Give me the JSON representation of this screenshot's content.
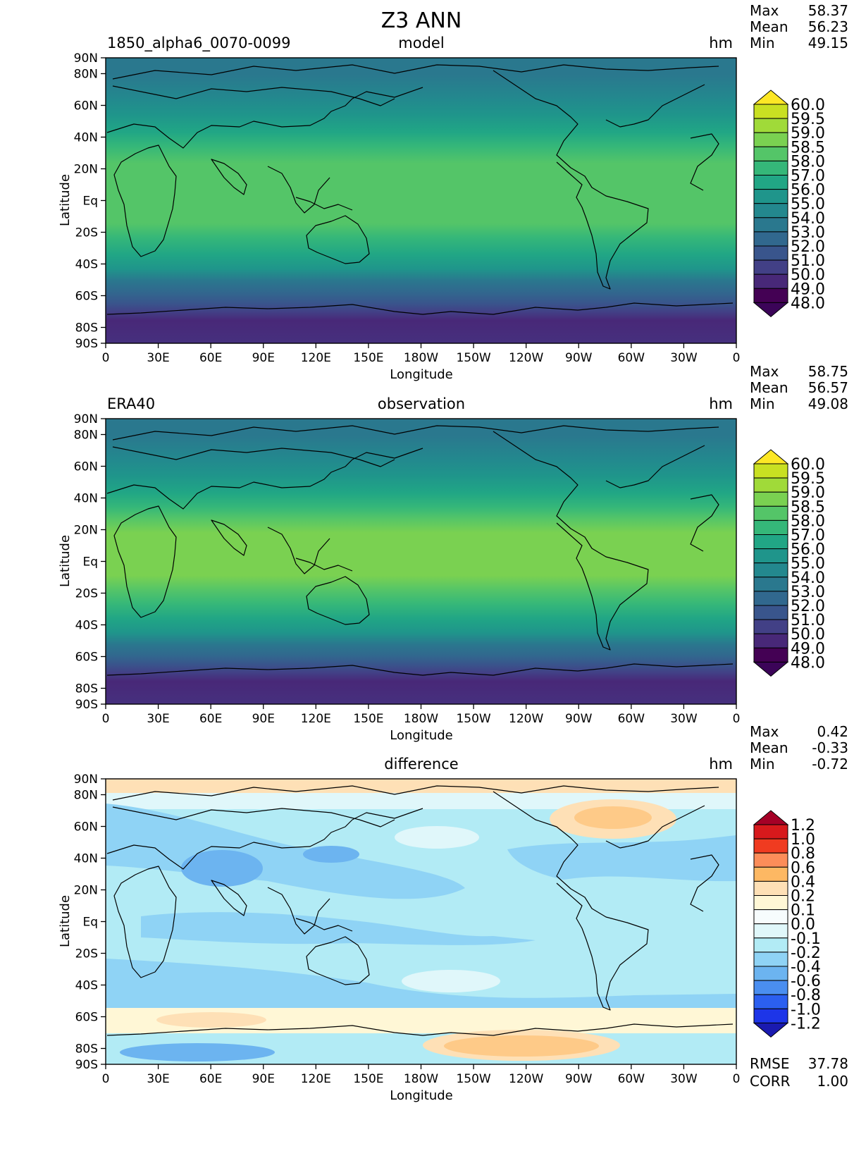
{
  "title": "Z3 ANN",
  "panels": [
    {
      "id": "model",
      "left_label": "1850_alpha6_0070-0099",
      "center_label": "model",
      "unit": "hm",
      "stats": [
        {
          "label": "Max",
          "value": "58.37"
        },
        {
          "label": "Mean",
          "value": "56.23"
        },
        {
          "label": "Min",
          "value": "49.15"
        }
      ],
      "colorbar_labels": [
        "60.0",
        "59.5",
        "59.0",
        "58.5",
        "58.0",
        "57.0",
        "56.0",
        "55.0",
        "54.0",
        "53.0",
        "52.0",
        "51.0",
        "50.0",
        "49.0",
        "48.0"
      ],
      "colorbar_colors": [
        "#fde725",
        "#c9e022",
        "#a0da39",
        "#7ad151",
        "#54c568",
        "#35b779",
        "#21a685",
        "#1f958b",
        "#23888e",
        "#2a788e",
        "#31688e",
        "#39558c",
        "#424086",
        "#482878",
        "#440154",
        "#3b0458"
      ]
    },
    {
      "id": "observation",
      "left_label": "ERA40",
      "center_label": "observation",
      "unit": "hm",
      "stats": [
        {
          "label": "Max",
          "value": "58.75"
        },
        {
          "label": "Mean",
          "value": "56.57"
        },
        {
          "label": "Min",
          "value": "49.08"
        }
      ],
      "colorbar_labels": [
        "60.0",
        "59.5",
        "59.0",
        "58.5",
        "58.0",
        "57.0",
        "56.0",
        "55.0",
        "54.0",
        "53.0",
        "52.0",
        "51.0",
        "50.0",
        "49.0",
        "48.0"
      ],
      "colorbar_colors": [
        "#fde725",
        "#c9e022",
        "#a0da39",
        "#7ad151",
        "#54c568",
        "#35b779",
        "#21a685",
        "#1f958b",
        "#23888e",
        "#2a788e",
        "#31688e",
        "#39558c",
        "#424086",
        "#482878",
        "#440154",
        "#3b0458"
      ]
    },
    {
      "id": "difference",
      "left_label": "",
      "center_label": "difference",
      "unit": "hm",
      "stats": [
        {
          "label": "Max",
          "value": "0.42"
        },
        {
          "label": "Mean",
          "value": "-0.33"
        },
        {
          "label": "Min",
          "value": "-0.72"
        }
      ],
      "colorbar_labels": [
        "1.2",
        "1.0",
        "0.8",
        "0.6",
        "0.4",
        "0.2",
        "0.1",
        "0.0",
        "-0.1",
        "-0.2",
        "-0.4",
        "-0.6",
        "-0.8",
        "-1.0",
        "-1.2"
      ],
      "colorbar_colors": [
        "#a50026",
        "#d7191c",
        "#f03b20",
        "#fc8d59",
        "#fdb863",
        "#fee0b6",
        "#fff7d6",
        "#f7fcfd",
        "#e0f7fa",
        "#b2ebf5",
        "#8fd3f5",
        "#6cb4f0",
        "#4a8ef0",
        "#2b5ff0",
        "#1d35e8",
        "#1a1ab0"
      ],
      "footer_stats": [
        {
          "label": "RMSE",
          "value": "37.78"
        },
        {
          "label": "CORR",
          "value": "1.00"
        }
      ]
    }
  ],
  "axes": {
    "xlabel": "Longitude",
    "ylabel": "Latitude",
    "x_ticks": [
      "0",
      "30E",
      "60E",
      "90E",
      "120E",
      "150E",
      "180W",
      "150W",
      "120W",
      "90W",
      "60W",
      "30W",
      "0"
    ],
    "y_ticks": [
      "90N",
      "80N",
      "60N",
      "40N",
      "20N",
      "Eq",
      "20S",
      "40S",
      "60S",
      "80S",
      "90S"
    ]
  },
  "chart_data": [
    {
      "type": "heatmap",
      "title": "model",
      "variable": "Z3",
      "units": "hm",
      "x_range": [
        0,
        360
      ],
      "y_range": [
        -90,
        90
      ],
      "zonal_mean_profile": {
        "lat": [
          90,
          80,
          60,
          40,
          20,
          0,
          -20,
          -40,
          -60,
          -80,
          -90
        ],
        "z3": [
          53.5,
          53.5,
          54.5,
          56.5,
          58.0,
          58.2,
          58.0,
          56.0,
          51.5,
          49.3,
          49.2
        ]
      },
      "stats": {
        "max": 58.37,
        "mean": 56.23,
        "min": 49.15
      }
    },
    {
      "type": "heatmap",
      "title": "observation",
      "variable": "Z3",
      "units": "hm",
      "x_range": [
        0,
        360
      ],
      "y_range": [
        -90,
        90
      ],
      "zonal_mean_profile": {
        "lat": [
          90,
          80,
          60,
          40,
          20,
          0,
          -20,
          -40,
          -60,
          -80,
          -90
        ],
        "z3": [
          53.5,
          53.7,
          54.8,
          56.8,
          58.4,
          58.6,
          58.4,
          56.3,
          51.8,
          49.4,
          49.2
        ]
      },
      "stats": {
        "max": 58.75,
        "mean": 56.57,
        "min": 49.08
      }
    },
    {
      "type": "heatmap",
      "title": "difference",
      "variable": "Z3",
      "units": "hm",
      "x_range": [
        0,
        360
      ],
      "y_range": [
        -90,
        90
      ],
      "stats": {
        "max": 0.42,
        "mean": -0.33,
        "min": -0.72
      },
      "rmse": 37.78,
      "corr": 1.0
    }
  ]
}
